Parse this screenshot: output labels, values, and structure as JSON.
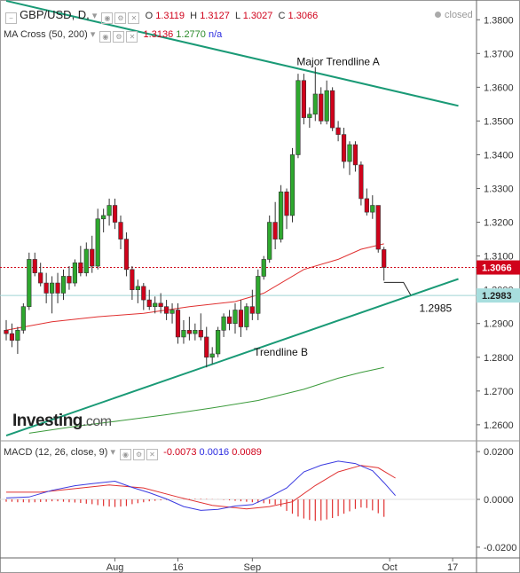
{
  "header": {
    "symbol": "GBP/USD, D,",
    "o_label": "O",
    "o_value": "1.3119",
    "h_label": "H",
    "h_value": "1.3127",
    "l_label": "L",
    "l_value": "1.3027",
    "c_label": "C",
    "c_value": "1.3066",
    "status": "closed"
  },
  "ma_header": {
    "label": "MA Cross (50, 200)",
    "v1": "1.3136",
    "v2": "1.2770",
    "v3": "n/a"
  },
  "macd_header": {
    "label": "MACD (12, 26, close, 9)",
    "v1": "-0.0073",
    "v2": "0.0016",
    "v3": "0.0089"
  },
  "logo": {
    "main": "Investing",
    "suffix": ".com"
  },
  "colors": {
    "up": "#2ea82e",
    "down": "#d0021b",
    "trendline": "#1a9a76",
    "ma_fast": "#e03030",
    "ma_slow": "#3a9a3a",
    "macd_line": "#3a3ae0",
    "signal_line": "#e03030"
  },
  "chart_data": [
    {
      "type": "candlestick",
      "title": "GBP/USD, D",
      "price_labels": {
        "last": "1.3066",
        "level2": "1.2983"
      },
      "ylim": [
        1.2555,
        1.3848
      ],
      "yticks": [
        "1.3800",
        "1.3700",
        "1.3600",
        "1.3500",
        "1.3400",
        "1.3300",
        "1.3200",
        "1.3100",
        "1.3000",
        "1.2900",
        "1.2800",
        "1.2700",
        "1.2600"
      ],
      "xticks": [
        {
          "label": "Aug",
          "index": 19
        },
        {
          "label": "16",
          "index": 30
        },
        {
          "label": "Sep",
          "index": 43
        },
        {
          "label": "Oct",
          "index": 67
        },
        {
          "label": "17",
          "index": 78
        }
      ],
      "ohlc": [
        [
          1.288,
          1.291,
          1.285,
          1.287
        ],
        [
          1.287,
          1.29,
          1.283,
          1.285
        ],
        [
          1.285,
          1.289,
          1.281,
          1.288
        ],
        [
          1.288,
          1.296,
          1.287,
          1.295
        ],
        [
          1.295,
          1.311,
          1.294,
          1.309
        ],
        [
          1.309,
          1.311,
          1.304,
          1.305
        ],
        [
          1.305,
          1.308,
          1.301,
          1.302
        ],
        [
          1.302,
          1.305,
          1.296,
          1.299
        ],
        [
          1.299,
          1.304,
          1.293,
          1.302
        ],
        [
          1.302,
          1.305,
          1.296,
          1.299
        ],
        [
          1.299,
          1.306,
          1.297,
          1.304
        ],
        [
          1.304,
          1.307,
          1.3,
          1.302
        ],
        [
          1.302,
          1.309,
          1.301,
          1.308
        ],
        [
          1.308,
          1.313,
          1.304,
          1.305
        ],
        [
          1.305,
          1.314,
          1.304,
          1.312
        ],
        [
          1.312,
          1.316,
          1.305,
          1.307
        ],
        [
          1.307,
          1.324,
          1.306,
          1.321
        ],
        [
          1.321,
          1.324,
          1.317,
          1.322
        ],
        [
          1.322,
          1.327,
          1.319,
          1.325
        ],
        [
          1.325,
          1.327,
          1.318,
          1.32
        ],
        [
          1.32,
          1.322,
          1.312,
          1.315
        ],
        [
          1.315,
          1.317,
          1.304,
          1.306
        ],
        [
          1.306,
          1.307,
          1.297,
          1.3
        ],
        [
          1.3,
          1.303,
          1.296,
          1.301
        ],
        [
          1.301,
          1.302,
          1.294,
          1.297
        ],
        [
          1.297,
          1.3,
          1.294,
          1.295
        ],
        [
          1.295,
          1.298,
          1.293,
          1.296
        ],
        [
          1.296,
          1.299,
          1.293,
          1.295
        ],
        [
          1.295,
          1.297,
          1.291,
          1.293
        ],
        [
          1.293,
          1.296,
          1.29,
          1.294
        ],
        [
          1.294,
          1.296,
          1.284,
          1.286
        ],
        [
          1.286,
          1.291,
          1.284,
          1.288
        ],
        [
          1.288,
          1.292,
          1.285,
          1.287
        ],
        [
          1.287,
          1.29,
          1.285,
          1.288
        ],
        [
          1.288,
          1.293,
          1.285,
          1.286
        ],
        [
          1.286,
          1.289,
          1.277,
          1.28
        ],
        [
          1.28,
          1.283,
          1.278,
          1.281
        ],
        [
          1.281,
          1.289,
          1.28,
          1.288
        ],
        [
          1.288,
          1.293,
          1.286,
          1.292
        ],
        [
          1.292,
          1.294,
          1.288,
          1.29
        ],
        [
          1.29,
          1.296,
          1.287,
          1.294
        ],
        [
          1.294,
          1.297,
          1.286,
          1.289
        ],
        [
          1.289,
          1.296,
          1.288,
          1.295
        ],
        [
          1.295,
          1.3,
          1.291,
          1.293
        ],
        [
          1.293,
          1.306,
          1.291,
          1.304
        ],
        [
          1.304,
          1.31,
          1.303,
          1.309
        ],
        [
          1.309,
          1.322,
          1.308,
          1.32
        ],
        [
          1.32,
          1.326,
          1.312,
          1.315
        ],
        [
          1.315,
          1.331,
          1.314,
          1.329
        ],
        [
          1.329,
          1.33,
          1.318,
          1.322
        ],
        [
          1.322,
          1.342,
          1.32,
          1.34
        ],
        [
          1.34,
          1.364,
          1.339,
          1.362
        ],
        [
          1.362,
          1.364,
          1.349,
          1.351
        ],
        [
          1.351,
          1.354,
          1.348,
          1.352
        ],
        [
          1.352,
          1.366,
          1.35,
          1.358
        ],
        [
          1.358,
          1.36,
          1.349,
          1.35
        ],
        [
          1.35,
          1.362,
          1.349,
          1.359
        ],
        [
          1.359,
          1.36,
          1.347,
          1.348
        ],
        [
          1.348,
          1.35,
          1.344,
          1.346
        ],
        [
          1.346,
          1.348,
          1.336,
          1.338
        ],
        [
          1.338,
          1.344,
          1.334,
          1.343
        ],
        [
          1.343,
          1.344,
          1.335,
          1.337
        ],
        [
          1.337,
          1.338,
          1.325,
          1.327
        ],
        [
          1.327,
          1.33,
          1.322,
          1.323
        ],
        [
          1.323,
          1.328,
          1.321,
          1.325
        ],
        [
          1.325,
          1.325,
          1.311,
          1.312
        ],
        [
          1.3119,
          1.3127,
          1.3027,
          1.3066
        ]
      ],
      "ma_fast_series": [
        [
          0,
          1.288
        ],
        [
          8,
          1.2905
        ],
        [
          16,
          1.292
        ],
        [
          24,
          1.293
        ],
        [
          32,
          1.295
        ],
        [
          40,
          1.2965
        ],
        [
          45,
          1.299
        ],
        [
          52,
          1.306
        ],
        [
          58,
          1.309
        ],
        [
          62,
          1.312
        ],
        [
          66,
          1.3136
        ]
      ],
      "ma_slow_series": [
        [
          4,
          1.2575
        ],
        [
          12,
          1.2595
        ],
        [
          20,
          1.2612
        ],
        [
          28,
          1.263
        ],
        [
          36,
          1.265
        ],
        [
          44,
          1.2672
        ],
        [
          52,
          1.2705
        ],
        [
          58,
          1.2738
        ],
        [
          62,
          1.2755
        ],
        [
          66,
          1.277
        ]
      ],
      "annotations": [
        {
          "text": "Major Trendline A",
          "x_index": 58,
          "y": 1.3665
        },
        {
          "text": "Trendline B",
          "x_index": 48,
          "y": 1.2805
        },
        {
          "text": "1.2985",
          "x_index": 70,
          "y": 1.2935
        }
      ],
      "trendline_a": [
        [
          0,
          1.3856
        ],
        [
          79,
          1.3545
        ]
      ],
      "trendline_b": [
        [
          0,
          1.2568
        ],
        [
          79,
          1.3032
        ]
      ]
    },
    {
      "type": "line",
      "title": "MACD (12, 26, close, 9)",
      "ylim": [
        -0.0245,
        0.0245
      ],
      "yticks": [
        "0.0200",
        "0.0000",
        "-0.0200"
      ],
      "macd_series": [
        [
          0,
          0.0006
        ],
        [
          4,
          0.001
        ],
        [
          8,
          0.0038
        ],
        [
          12,
          0.0057
        ],
        [
          15,
          0.0066
        ],
        [
          19,
          0.0076
        ],
        [
          22,
          0.005
        ],
        [
          25,
          0.0028
        ],
        [
          28,
          0.0002
        ],
        [
          31,
          -0.003
        ],
        [
          34,
          -0.0046
        ],
        [
          37,
          -0.0042
        ],
        [
          40,
          -0.0028
        ],
        [
          43,
          -0.0022
        ],
        [
          46,
          0.001
        ],
        [
          49,
          0.0048
        ],
        [
          52,
          0.0115
        ],
        [
          55,
          0.0143
        ],
        [
          58,
          0.016
        ],
        [
          61,
          0.015
        ],
        [
          64,
          0.012
        ],
        [
          66,
          0.007
        ],
        [
          68,
          0.0016
        ]
      ],
      "signal_series": [
        [
          0,
          0.003
        ],
        [
          6,
          0.003
        ],
        [
          12,
          0.0045
        ],
        [
          18,
          0.006
        ],
        [
          24,
          0.0048
        ],
        [
          30,
          0.001
        ],
        [
          36,
          -0.0025
        ],
        [
          42,
          -0.004
        ],
        [
          46,
          -0.003
        ],
        [
          50,
          -0.001
        ],
        [
          54,
          0.0058
        ],
        [
          58,
          0.0115
        ],
        [
          62,
          0.0142
        ],
        [
          65,
          0.0132
        ],
        [
          68,
          0.0089
        ]
      ],
      "histogram": [
        -0.001,
        -0.001,
        -0.0012,
        -0.0012,
        -0.0013,
        -0.0012,
        -0.0011,
        -0.001,
        -0.0008,
        -0.0008,
        -0.001,
        -0.0012,
        -0.0013,
        -0.0015,
        -0.0018,
        -0.002,
        -0.0024,
        -0.0028,
        -0.003,
        -0.0032,
        -0.003,
        -0.0028,
        -0.002,
        -0.0016,
        -0.0012,
        -0.0008,
        -0.0006,
        -0.0004,
        -0.0002,
        -0.0001,
        0.0001,
        0.0002,
        0.0003,
        0.0004,
        0.0004,
        0.0003,
        0.0002,
        0.0001,
        -0.0002,
        -0.0004,
        -0.0006,
        -0.0008,
        -0.001,
        -0.0012,
        -0.0014,
        -0.0016,
        -0.0018,
        -0.0022,
        -0.003,
        -0.0048,
        -0.006,
        -0.0072,
        -0.008,
        -0.0086,
        -0.009,
        -0.0088,
        -0.0084,
        -0.0078,
        -0.007,
        -0.006,
        -0.005,
        -0.004,
        -0.0034,
        -0.0036,
        -0.0046,
        -0.0058,
        -0.0073
      ]
    }
  ]
}
